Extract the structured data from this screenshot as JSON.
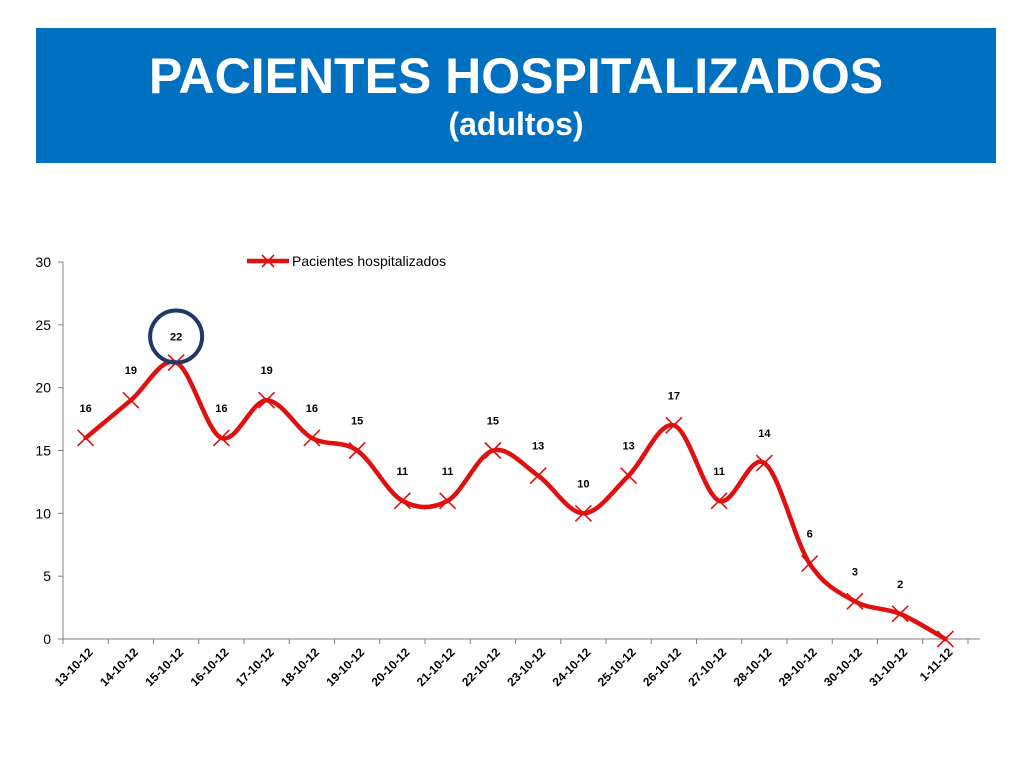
{
  "header": {
    "title": "PACIENTES HOSPITALIZADOS",
    "subtitle": "(adultos)"
  },
  "colors": {
    "banner": "#0070c0",
    "line": "#e01010",
    "marker": "#e01010",
    "highlight_circle": "#1f3864"
  },
  "chart_data": {
    "type": "line",
    "title": "",
    "xlabel": "",
    "ylabel": "",
    "ylim": [
      0,
      30
    ],
    "yticks": [
      0,
      5,
      10,
      15,
      20,
      25,
      30
    ],
    "grid": false,
    "legend_position": "top",
    "categories": [
      "13-10-12",
      "14-10-12",
      "15-10-12",
      "16-10-12",
      "17-10-12",
      "18-10-12",
      "19-10-12",
      "20-10-12",
      "21-10-12",
      "22-10-12",
      "23-10-12",
      "24-10-12",
      "25-10-12",
      "26-10-12",
      "27-10-12",
      "28-10-12",
      "29-10-12",
      "30-10-12",
      "31-10-12",
      "1-11-12"
    ],
    "series": [
      {
        "name": "Pacientes hospitalizados",
        "x_positions": [
          0,
          1,
          2,
          3,
          4,
          5,
          6,
          7,
          8,
          9,
          10,
          11,
          12,
          13,
          14,
          15,
          16,
          17,
          18,
          19
        ],
        "values": [
          16,
          19,
          22,
          16,
          19,
          16,
          15,
          11,
          11,
          15,
          13,
          10,
          13,
          17,
          11,
          14,
          6,
          3,
          2,
          0
        ],
        "data_labels": [
          "16",
          "19",
          "22",
          "16",
          "19",
          "16",
          "15",
          "11",
          "11",
          "15",
          "13",
          "10",
          "13",
          "17",
          "11",
          "14",
          "6",
          "3",
          "2",
          ""
        ]
      }
    ],
    "highlight": {
      "point_index": 2,
      "value": 22
    }
  }
}
